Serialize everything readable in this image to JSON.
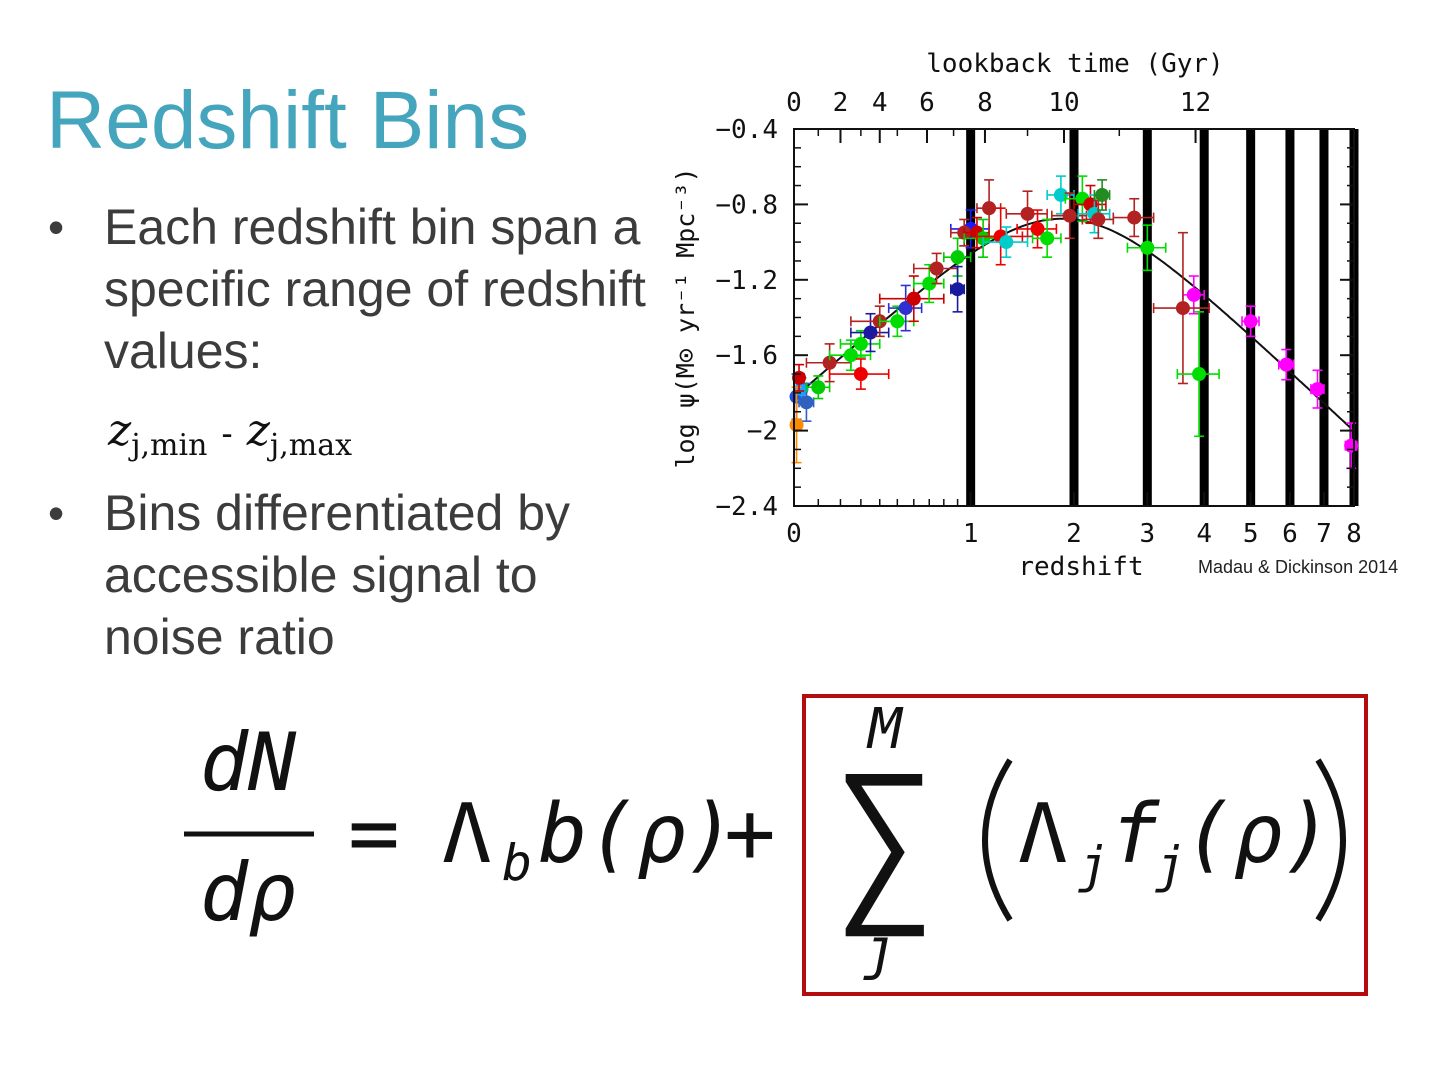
{
  "slide": {
    "title": "Redshift Bins",
    "bullets": [
      {
        "text": "Each redshift bin span a specific range of redshift values:"
      },
      {
        "text": "Bins differentiated by accessible signal to noise ratio"
      }
    ],
    "zrange": {
      "var": "z",
      "sub_min": "j,min",
      "dash": "-",
      "sub_max": "j,max"
    },
    "credit": "Madau & Dickinson 2014",
    "equation": {
      "lhs_num": "dN",
      "lhs_den": "dρ",
      "equals": "=",
      "lambda": "Λ",
      "lambda_sub": "b",
      "b_term": "b(ρ)",
      "plus": "+",
      "sum_top": "M",
      "sum_bottom": "j",
      "sum_symbol": "∑",
      "inner_lambda_sub": "j",
      "f_term": "f",
      "f_sub": "j",
      "rho_term": "(ρ)"
    },
    "colors": {
      "title": "#45a5bd",
      "box": "#b30d0d"
    }
  },
  "chart_data": {
    "type": "scatter",
    "xlabel": "redshift",
    "ylabel": "log ψ(M⊙ yr⁻¹ Mpc⁻³)",
    "top_label": "lookback time (Gyr)",
    "x_scale": "log(1+z)",
    "xlim": [
      0,
      8
    ],
    "ylim": [
      -2.4,
      -0.4
    ],
    "x_ticks": [
      "0",
      "1",
      "2",
      "3",
      "4",
      "5",
      "6",
      "7",
      "8"
    ],
    "y_ticks": [
      "−0.4",
      "−0.8",
      "−1.2",
      "−1.6",
      "−2",
      "−2.4"
    ],
    "top_ticks": [
      {
        "gyr": 0,
        "label": "0"
      },
      {
        "gyr": 2,
        "label": "2"
      },
      {
        "gyr": 4,
        "label": "4"
      },
      {
        "gyr": 6,
        "label": "6"
      },
      {
        "gyr": 8,
        "label": "8"
      },
      {
        "gyr": 10,
        "label": "10"
      },
      {
        "gyr": 12,
        "label": "12"
      }
    ],
    "bin_edges": [
      1,
      2,
      3,
      4,
      5,
      6,
      7,
      8
    ],
    "fit_curve": "Madau & Dickinson 2014 fit",
    "points": [
      {
        "z": 0.01,
        "y": -1.82,
        "ex": 0.02,
        "ey": 0.12,
        "c": "#1f4fe0"
      },
      {
        "z": 0.03,
        "y": -1.78,
        "ex": 0.02,
        "ey": 0.06,
        "c": "#1aa0ff"
      },
      {
        "z": 0.05,
        "y": -1.85,
        "ex": 0.03,
        "ey": 0.1,
        "c": "#3060c0"
      },
      {
        "z": 0.01,
        "y": -1.97,
        "ex": 0.01,
        "ey": 0.2,
        "c": "#ff8c00"
      },
      {
        "z": 0.02,
        "y": -1.72,
        "ex": 0.02,
        "ey": 0.07,
        "c": "#cc0000"
      },
      {
        "z": 0.1,
        "y": -1.77,
        "ex": 0.05,
        "ey": 0.06,
        "c": "#00cc00"
      },
      {
        "z": 0.15,
        "y": -1.64,
        "ex": 0.1,
        "ey": 0.1,
        "c": "#b22222"
      },
      {
        "z": 0.25,
        "y": -1.6,
        "ex": 0.1,
        "ey": 0.08,
        "c": "#00dd00"
      },
      {
        "z": 0.3,
        "y": -1.54,
        "ex": 0.1,
        "ey": 0.07,
        "c": "#00dd00"
      },
      {
        "z": 0.35,
        "y": -1.48,
        "ex": 0.1,
        "ey": 0.1,
        "c": "#1a1aa0"
      },
      {
        "z": 0.4,
        "y": -1.42,
        "ex": 0.15,
        "ey": 0.08,
        "c": "#b22222"
      },
      {
        "z": 0.5,
        "y": -1.42,
        "ex": 0.1,
        "ey": 0.08,
        "c": "#00dd00"
      },
      {
        "z": 0.55,
        "y": -1.35,
        "ex": 0.1,
        "ey": 0.12,
        "c": "#3030d0"
      },
      {
        "z": 0.6,
        "y": -1.3,
        "ex": 0.2,
        "ey": 0.12,
        "c": "#cc0000"
      },
      {
        "z": 0.3,
        "y": -1.7,
        "ex": 0.15,
        "ey": 0.08,
        "c": "#ee0000"
      },
      {
        "z": 0.7,
        "y": -1.22,
        "ex": 0.1,
        "ey": 0.1,
        "c": "#00dd00"
      },
      {
        "z": 0.75,
        "y": -1.14,
        "ex": 0.15,
        "ey": 0.08,
        "c": "#b22222"
      },
      {
        "z": 0.9,
        "y": -1.08,
        "ex": 0.1,
        "ey": 0.1,
        "c": "#00cc00"
      },
      {
        "z": 0.9,
        "y": -1.25,
        "ex": 0.05,
        "ey": 0.12,
        "c": "#1a1aa0"
      },
      {
        "z": 1.0,
        "y": -0.93,
        "ex": 0.15,
        "ey": 0.1,
        "c": "#1a1aff"
      },
      {
        "z": 0.95,
        "y": -0.95,
        "ex": 0.1,
        "ey": 0.07,
        "c": "#b22222"
      },
      {
        "z": 1.05,
        "y": -0.95,
        "ex": 0.1,
        "ey": 0.08,
        "c": "#cc0000"
      },
      {
        "z": 1.1,
        "y": -0.98,
        "ex": 0.15,
        "ey": 0.1,
        "c": "#00cc00"
      },
      {
        "z": 1.15,
        "y": -0.82,
        "ex": 0.1,
        "ey": 0.15,
        "c": "#b22222"
      },
      {
        "z": 1.25,
        "y": -0.97,
        "ex": 0.2,
        "ey": 0.15,
        "c": "#ee0000"
      },
      {
        "z": 1.3,
        "y": -1.0,
        "ex": 0.2,
        "ey": 0.08,
        "c": "#00cccc"
      },
      {
        "z": 1.5,
        "y": -0.85,
        "ex": 0.2,
        "ey": 0.12,
        "c": "#b22222"
      },
      {
        "z": 1.6,
        "y": -0.93,
        "ex": 0.2,
        "ey": 0.1,
        "c": "#ee0000"
      },
      {
        "z": 1.7,
        "y": -0.98,
        "ex": 0.15,
        "ey": 0.1,
        "c": "#00dd00"
      },
      {
        "z": 1.85,
        "y": -0.75,
        "ex": 0.15,
        "ey": 0.1,
        "c": "#00cccc"
      },
      {
        "z": 1.95,
        "y": -0.86,
        "ex": 0.2,
        "ey": 0.12,
        "c": "#b22222"
      },
      {
        "z": 2.1,
        "y": -0.77,
        "ex": 0.2,
        "ey": 0.12,
        "c": "#00dd00"
      },
      {
        "z": 2.2,
        "y": -0.8,
        "ex": 0.2,
        "ey": 0.1,
        "c": "#cc0000"
      },
      {
        "z": 2.25,
        "y": -0.85,
        "ex": 0.2,
        "ey": 0.1,
        "c": "#00cccc"
      },
      {
        "z": 2.3,
        "y": -0.88,
        "ex": 0.2,
        "ey": 0.1,
        "c": "#b22222"
      },
      {
        "z": 2.35,
        "y": -0.75,
        "ex": 0.1,
        "ey": 0.08,
        "c": "#228b22"
      },
      {
        "z": 2.8,
        "y": -0.87,
        "ex": 0.3,
        "ey": 0.1,
        "c": "#b22222"
      },
      {
        "z": 3.0,
        "y": -1.03,
        "ex": 0.3,
        "ey": 0.12,
        "c": "#00dd00"
      },
      {
        "z": 3.8,
        "y": -1.28,
        "ex": 0.2,
        "ey": 0.1,
        "c": "#ff00ff"
      },
      {
        "z": 3.6,
        "y": -1.35,
        "ex": 0.5,
        "ey": 0.4,
        "c": "#b22222"
      },
      {
        "z": 3.9,
        "y": -1.7,
        "ex": 0.4,
        "ey": 0.33,
        "c": "#00dd00"
      },
      {
        "z": 5.0,
        "y": -1.42,
        "ex": 0.2,
        "ey": 0.08,
        "c": "#ff00ff"
      },
      {
        "z": 5.9,
        "y": -1.65,
        "ex": 0.2,
        "ey": 0.08,
        "c": "#ff00ff"
      },
      {
        "z": 6.8,
        "y": -1.78,
        "ex": 0.2,
        "ey": 0.1,
        "c": "#ff00ff"
      },
      {
        "z": 7.9,
        "y": -2.08,
        "ex": 0.2,
        "ey": 0.12,
        "c": "#ff00ff"
      }
    ]
  }
}
